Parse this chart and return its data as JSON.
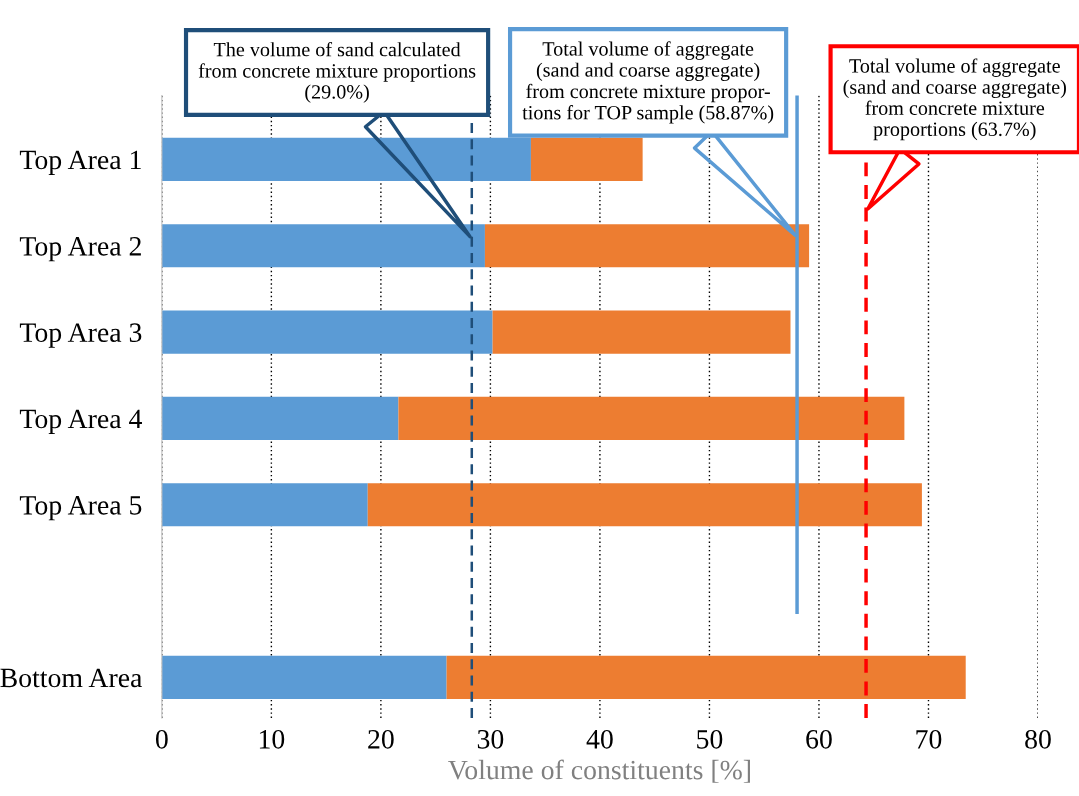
{
  "chart_data": {
    "type": "bar",
    "orientation": "horizontal",
    "stacked": true,
    "categories": [
      "Top Area 1",
      "Top Area 2",
      "Top Area 3",
      "Top Area 4",
      "Top Area 5",
      null,
      "Bottom Area"
    ],
    "series": [
      {
        "color": "#5b9bd5",
        "values": [
          33.7,
          29.5,
          30.2,
          21.6,
          18.8,
          null,
          26.0
        ]
      },
      {
        "color": "#ed7d31",
        "values": [
          10.2,
          29.6,
          27.2,
          46.2,
          50.6,
          null,
          47.4
        ]
      }
    ],
    "xlabel": "Volume of constituents [%]",
    "xlim": [
      0,
      80
    ],
    "xticks": [
      0,
      10,
      20,
      30,
      40,
      50,
      60,
      70,
      80
    ],
    "grid": "x",
    "legend": false,
    "ref_lines": [
      {
        "axis": "x",
        "value": 28.3,
        "color": "#1f4e79",
        "line_style": "dashed",
        "label": "The volume of sand calculated\nfrom concrete mixture proportions\n(29.0%)"
      },
      {
        "axis": "x",
        "value": 58.0,
        "color": "#5b9bd5",
        "line_style": "solid",
        "label": "Total volume of aggregate\n(sand and coarse aggregate)\nfrom concrete mixture propor-\ntions for TOP sample (58.87%)"
      },
      {
        "axis": "x",
        "value": 64.3,
        "color": "#ff0000",
        "line_style": "dashed",
        "label": "Total volume of aggregate\n(sand and coarse aggregate)\nfrom concrete mixture\nproportions (63.7%)"
      }
    ]
  }
}
